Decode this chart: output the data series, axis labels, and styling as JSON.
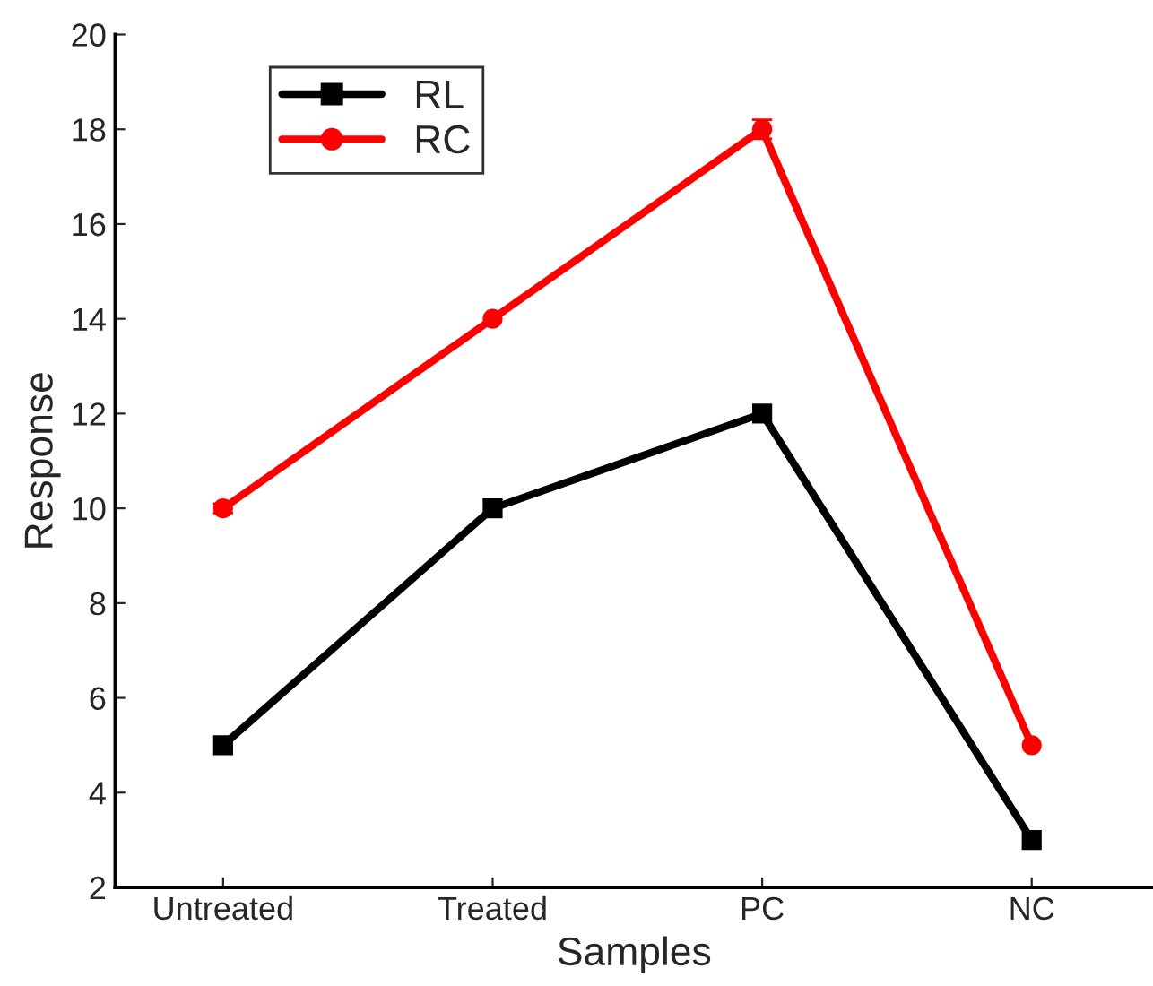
{
  "chart_data": {
    "type": "line",
    "xlabel": "Samples",
    "ylabel": "Response",
    "categories": [
      "Untreated",
      "Treated",
      "PC",
      "NC"
    ],
    "series": [
      {
        "name": "RL",
        "color": "#000000",
        "marker": "square",
        "values": [
          5,
          10,
          12,
          3
        ]
      },
      {
        "name": "RC",
        "color": "#ff0000",
        "marker": "circle",
        "values": [
          10,
          14,
          18,
          5
        ],
        "errors": [
          0.1,
          null,
          0.2,
          null
        ]
      }
    ],
    "ylim": [
      2,
      20
    ],
    "yticks": [
      2,
      4,
      6,
      8,
      10,
      12,
      14,
      16,
      18,
      20
    ],
    "grid": false,
    "legend": "top left",
    "line_style": "solid"
  }
}
